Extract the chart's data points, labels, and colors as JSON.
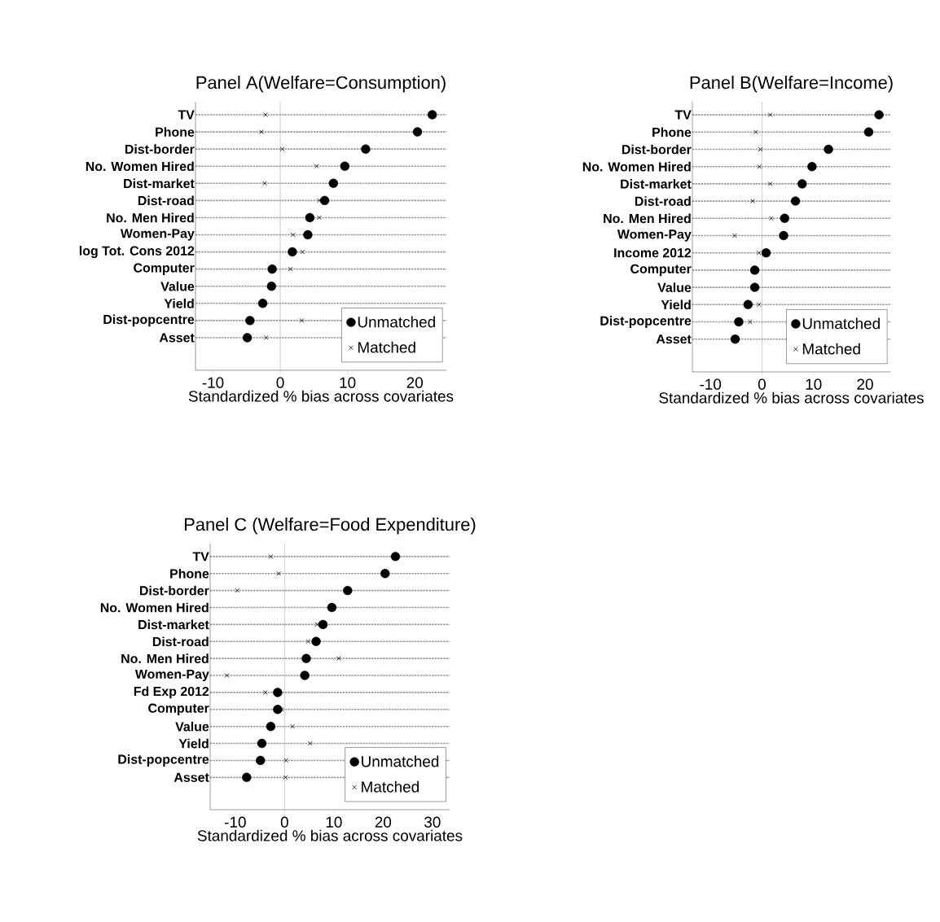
{
  "chart_data": [
    {
      "type": "scatter",
      "title": "Panel A(Welfare=Consumption)",
      "xlabel": "Standardized % bias across covariates",
      "categories": [
        "TV",
        "Phone",
        "Dist-border",
        "No. Women Hired",
        "Dist-market",
        "Dist-road",
        "No. Men Hired",
        "Women-Pay",
        "log Tot. Cons 2012",
        "Computer",
        "Value",
        "Yield",
        "Dist-popcentre",
        "Asset"
      ],
      "orientation": "horizontal",
      "xlim": [
        -12.6,
        24.7
      ],
      "xticks": [
        -10,
        0,
        10,
        20
      ],
      "grid": "y",
      "legend": "bottom right",
      "ref_lines": [
        {
          "axis": "x",
          "value": 0,
          "color": "#808080"
        }
      ],
      "series": [
        {
          "name": "Unmatched",
          "color": "#000000",
          "marker": "circle",
          "values": [
            22.6,
            20.4,
            12.7,
            9.6,
            7.9,
            6.6,
            4.4,
            4.1,
            1.8,
            -1.2,
            -1.3,
            -2.6,
            -4.5,
            -4.9
          ]
        },
        {
          "name": "Matched",
          "color": "#000000",
          "marker": "cross",
          "values": [
            -2.2,
            -2.8,
            0.3,
            5.4,
            -2.3,
            5.8,
            5.8,
            1.9,
            3.3,
            1.5,
            null,
            null,
            3.2,
            -2.1
          ]
        }
      ]
    },
    {
      "type": "scatter",
      "title": "Panel B(Welfare=Income)",
      "xlabel": "Standardized % bias across covariates",
      "categories": [
        "TV",
        "Phone",
        "Dist-border",
        "No. Women Hired",
        "Dist-market",
        "Dist-road",
        "No. Men Hired",
        "Women-Pay",
        "Income 2012",
        "Computer",
        "Value",
        "Yield",
        "Dist-popcentre",
        "Asset"
      ],
      "orientation": "horizontal",
      "xlim": [
        -13.5,
        24.9
      ],
      "xticks": [
        -10,
        0,
        10,
        20
      ],
      "grid": "y",
      "legend": "bottom right",
      "ref_lines": [
        {
          "axis": "x",
          "value": 0,
          "color": "#808080"
        }
      ],
      "series": [
        {
          "name": "Unmatched",
          "color": "#000000",
          "marker": "circle",
          "values": [
            22.7,
            20.7,
            12.9,
            9.7,
            7.8,
            6.5,
            4.4,
            4.2,
            0.8,
            -1.4,
            -1.4,
            -2.7,
            -4.5,
            -5.2
          ]
        },
        {
          "name": "Matched",
          "color": "#000000",
          "marker": "cross",
          "values": [
            1.6,
            -1.2,
            -0.3,
            -0.5,
            1.6,
            -1.8,
            1.8,
            -5.3,
            -0.6,
            null,
            null,
            -0.6,
            -2.3,
            null
          ]
        }
      ]
    },
    {
      "type": "scatter",
      "title": "Panel C (Welfare=Food Expenditure)",
      "xlabel": "Standardized % bias across covariates",
      "categories": [
        "TV",
        "Phone",
        "Dist-border",
        "No. Women Hired",
        "Dist-market",
        "Dist-road",
        "No. Men Hired",
        "Women-Pay",
        "Fd Exp 2012",
        "Computer",
        "Value",
        "Yield",
        "Dist-popcentre",
        "Asset"
      ],
      "orientation": "horizontal",
      "xlim": [
        -15.1,
        33.5
      ],
      "xticks": [
        -10,
        0,
        10,
        20,
        30
      ],
      "grid": "y",
      "legend": "bottom right",
      "ref_lines": [
        {
          "axis": "x",
          "value": 0,
          "color": "#808080"
        }
      ],
      "series": [
        {
          "name": "Unmatched",
          "color": "#000000",
          "marker": "circle",
          "values": [
            22.5,
            20.4,
            12.8,
            9.6,
            7.8,
            6.4,
            4.4,
            4.1,
            -1.4,
            -1.4,
            -2.8,
            -4.6,
            -4.9,
            -7.7
          ]
        },
        {
          "name": "Matched",
          "color": "#000000",
          "marker": "cross",
          "values": [
            -2.8,
            -1.2,
            -9.6,
            null,
            6.6,
            4.8,
            11.0,
            -11.7,
            -3.9,
            -0.6,
            1.6,
            5.2,
            0.3,
            0.2
          ]
        }
      ]
    }
  ]
}
